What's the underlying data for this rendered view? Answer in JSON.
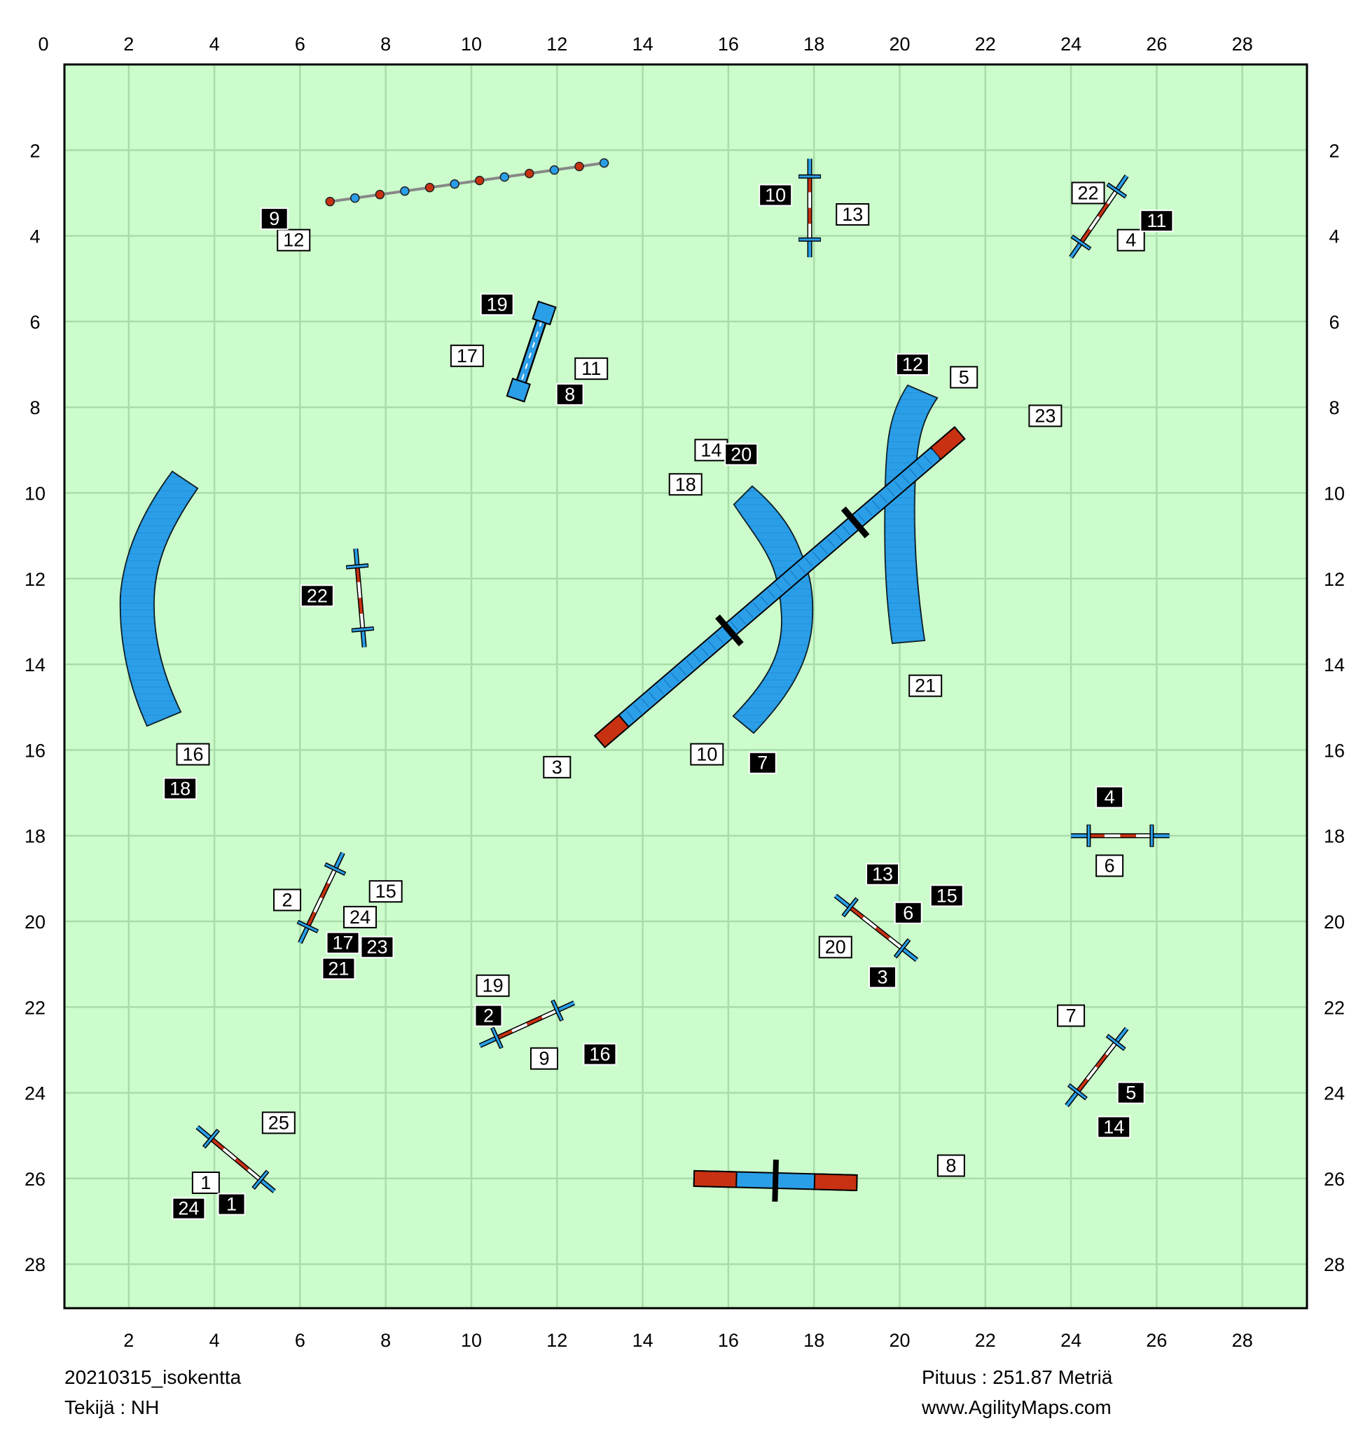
{
  "footer": {
    "course_name": "20210315_isokentta",
    "author": "Tekijä : NH",
    "length": "Pituus : 251.87 Metriä",
    "site": "www.AgilityMaps.com"
  },
  "colors": {
    "field": "#ccfccc",
    "grid": "#a8dca8",
    "blue": "#2b9ee8",
    "red": "#c83212",
    "border": "#000000"
  },
  "axes": {
    "top_ticks": [
      "0",
      "2",
      "4",
      "6",
      "8",
      "10",
      "12",
      "14",
      "16",
      "18",
      "20",
      "22",
      "24",
      "26",
      "28"
    ],
    "bottom_ticks": [
      "2",
      "4",
      "6",
      "8",
      "10",
      "12",
      "14",
      "16",
      "18",
      "20",
      "22",
      "24",
      "26",
      "28"
    ],
    "side_ticks": [
      "2",
      "4",
      "6",
      "8",
      "10",
      "12",
      "14",
      "16",
      "18",
      "20",
      "22",
      "24",
      "26",
      "28"
    ]
  },
  "obstacles": {
    "weave": {
      "x1": 6.7,
      "y1": 3.2,
      "x2": 13.1,
      "y2": 2.3,
      "poles": 12
    },
    "table": {
      "x1": 11.1,
      "y1": 7.6,
      "x2": 11.7,
      "y2": 5.8
    },
    "dogwalk": {
      "x1": 13.0,
      "y1": 15.8,
      "x2": 21.4,
      "y2": 8.6
    },
    "aframe": {
      "x1": 15.2,
      "y1": 26.0,
      "x2": 19.0,
      "y2": 26.1
    },
    "jumps": [
      {
        "x1": 17.9,
        "y1": 2.2,
        "x2": 17.9,
        "y2": 4.5
      },
      {
        "x1": 24.0,
        "y1": 4.5,
        "x2": 25.3,
        "y2": 2.6
      },
      {
        "x1": 7.3,
        "y1": 11.3,
        "x2": 7.5,
        "y2": 13.6
      },
      {
        "x1": 6.0,
        "y1": 20.5,
        "x2": 7.0,
        "y2": 18.4
      },
      {
        "x1": 10.2,
        "y1": 22.9,
        "x2": 12.4,
        "y2": 21.9
      },
      {
        "x1": 18.5,
        "y1": 19.4,
        "x2": 20.4,
        "y2": 20.9
      },
      {
        "x1": 24.0,
        "y1": 18.0,
        "x2": 26.3,
        "y2": 18.0
      },
      {
        "x1": 23.9,
        "y1": 24.3,
        "x2": 25.3,
        "y2": 22.5
      },
      {
        "x1": 3.6,
        "y1": 24.8,
        "x2": 5.4,
        "y2": 26.3
      }
    ]
  },
  "numbers_white": [
    {
      "label": "12",
      "x": 5.85,
      "y": 4.1
    },
    {
      "label": "13",
      "x": 18.9,
      "y": 3.5
    },
    {
      "label": "22",
      "x": 24.4,
      "y": 3.0
    },
    {
      "label": "4",
      "x": 25.4,
      "y": 4.1
    },
    {
      "label": "17",
      "x": 9.9,
      "y": 6.8
    },
    {
      "label": "11",
      "x": 12.8,
      "y": 7.1
    },
    {
      "label": "5",
      "x": 21.5,
      "y": 7.3
    },
    {
      "label": "23",
      "x": 23.4,
      "y": 8.2
    },
    {
      "label": "14",
      "x": 15.6,
      "y": 9.0
    },
    {
      "label": "18",
      "x": 15.0,
      "y": 9.8
    },
    {
      "label": "21",
      "x": 20.6,
      "y": 14.5
    },
    {
      "label": "16",
      "x": 3.5,
      "y": 16.1
    },
    {
      "label": "3",
      "x": 12.0,
      "y": 16.4
    },
    {
      "label": "10",
      "x": 15.5,
      "y": 16.1
    },
    {
      "label": "6",
      "x": 24.9,
      "y": 18.7
    },
    {
      "label": "15",
      "x": 8.0,
      "y": 19.3
    },
    {
      "label": "2",
      "x": 5.7,
      "y": 19.5
    },
    {
      "label": "24",
      "x": 7.4,
      "y": 19.9
    },
    {
      "label": "20",
      "x": 18.5,
      "y": 20.6
    },
    {
      "label": "19",
      "x": 10.5,
      "y": 21.5
    },
    {
      "label": "9",
      "x": 11.7,
      "y": 23.2
    },
    {
      "label": "7",
      "x": 24.0,
      "y": 22.2
    },
    {
      "label": "25",
      "x": 5.5,
      "y": 24.7
    },
    {
      "label": "1",
      "x": 3.8,
      "y": 26.1
    },
    {
      "label": "8",
      "x": 21.2,
      "y": 25.7
    }
  ],
  "numbers_black": [
    {
      "label": "9",
      "x": 5.4,
      "y": 3.6
    },
    {
      "label": "10",
      "x": 17.1,
      "y": 3.05
    },
    {
      "label": "11",
      "x": 26.0,
      "y": 3.65
    },
    {
      "label": "19",
      "x": 10.6,
      "y": 5.6
    },
    {
      "label": "8",
      "x": 12.3,
      "y": 7.7
    },
    {
      "label": "12",
      "x": 20.3,
      "y": 7.0
    },
    {
      "label": "20",
      "x": 16.3,
      "y": 9.1
    },
    {
      "label": "22",
      "x": 6.4,
      "y": 12.4
    },
    {
      "label": "18",
      "x": 3.2,
      "y": 16.9
    },
    {
      "label": "7",
      "x": 16.8,
      "y": 16.3
    },
    {
      "label": "4",
      "x": 24.9,
      "y": 17.1
    },
    {
      "label": "13",
      "x": 19.6,
      "y": 18.9
    },
    {
      "label": "15",
      "x": 21.1,
      "y": 19.4
    },
    {
      "label": "6",
      "x": 20.2,
      "y": 19.8
    },
    {
      "label": "17",
      "x": 7.0,
      "y": 20.5
    },
    {
      "label": "23",
      "x": 7.8,
      "y": 20.6
    },
    {
      "label": "21",
      "x": 6.9,
      "y": 21.1
    },
    {
      "label": "3",
      "x": 19.6,
      "y": 21.3
    },
    {
      "label": "2",
      "x": 10.4,
      "y": 22.2
    },
    {
      "label": "16",
      "x": 13.0,
      "y": 23.1
    },
    {
      "label": "5",
      "x": 25.4,
      "y": 24.0
    },
    {
      "label": "14",
      "x": 25.0,
      "y": 24.8
    },
    {
      "label": "24",
      "x": 3.4,
      "y": 26.7
    },
    {
      "label": "1",
      "x": 4.4,
      "y": 26.6
    }
  ]
}
